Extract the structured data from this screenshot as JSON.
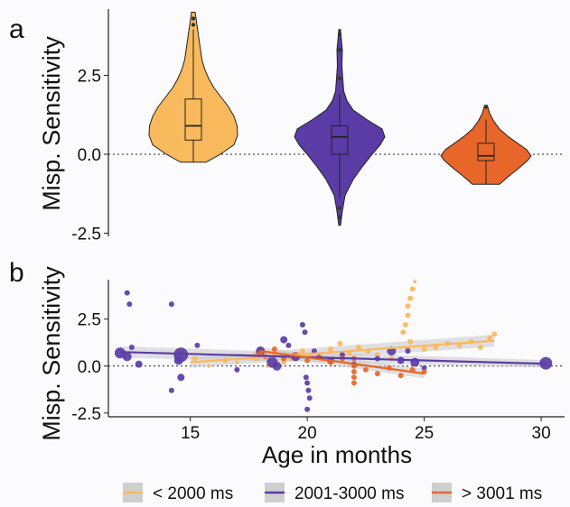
{
  "colors": {
    "short": "#f9b95d",
    "mid": "#5b3ca6",
    "long": "#e8662a",
    "ci": "#c9c9c9",
    "bg": "#fbfbfe"
  },
  "legend": [
    {
      "label": "< 2000 ms",
      "color": "#f9b95d"
    },
    {
      "label": "2001-3000 ms",
      "color": "#5b3ca6"
    },
    {
      "label": "> 3001 ms",
      "color": "#e8662a"
    }
  ],
  "chart_data": [
    {
      "type": "violin",
      "panel_label": "a",
      "ylabel": "Misp. Sensitivity",
      "ylim": [
        -2.6,
        4.6
      ],
      "yticks": [
        -2.5,
        0.0,
        2.5
      ],
      "ytick_labels": [
        "-2.5",
        "0.0",
        "2.5"
      ],
      "reference_line": 0,
      "groups": [
        {
          "name": "< 2000 ms",
          "color": "#f9b95d",
          "min": -0.25,
          "max": 4.5,
          "q1": 0.45,
          "median": 0.9,
          "q3": 1.75,
          "whisker_low": -0.25,
          "whisker_high": 3.95,
          "outliers": [
            4.1,
            4.3
          ],
          "density": [
            [
              -0.25,
              0.28
            ],
            [
              0.0,
              0.6
            ],
            [
              0.3,
              0.9
            ],
            [
              0.6,
              0.98
            ],
            [
              0.9,
              0.97
            ],
            [
              1.2,
              0.9
            ],
            [
              1.5,
              0.78
            ],
            [
              1.8,
              0.62
            ],
            [
              2.1,
              0.46
            ],
            [
              2.4,
              0.34
            ],
            [
              2.7,
              0.25
            ],
            [
              3.0,
              0.19
            ],
            [
              3.3,
              0.16
            ],
            [
              3.6,
              0.13
            ],
            [
              3.9,
              0.1
            ],
            [
              4.2,
              0.07
            ],
            [
              4.5,
              0.04
            ]
          ]
        },
        {
          "name": "2001-3000 ms",
          "color": "#5b3ca6",
          "min": -2.25,
          "max": 3.95,
          "q1": 0.0,
          "median": 0.55,
          "q3": 0.9,
          "whisker_low": -1.4,
          "whisker_high": 1.9,
          "outliers": [
            -2.0,
            -1.7,
            2.4,
            3.3,
            3.8
          ],
          "density": [
            [
              -2.25,
              0.02
            ],
            [
              -1.8,
              0.06
            ],
            [
              -1.3,
              0.12
            ],
            [
              -0.8,
              0.3
            ],
            [
              -0.4,
              0.5
            ],
            [
              0.0,
              0.72
            ],
            [
              0.3,
              0.9
            ],
            [
              0.55,
              1.0
            ],
            [
              0.8,
              0.94
            ],
            [
              1.1,
              0.6
            ],
            [
              1.4,
              0.3
            ],
            [
              1.7,
              0.16
            ],
            [
              2.0,
              0.09
            ],
            [
              2.4,
              0.07
            ],
            [
              2.8,
              0.05
            ],
            [
              3.3,
              0.06
            ],
            [
              3.6,
              0.04
            ],
            [
              3.95,
              0.02
            ]
          ]
        },
        {
          "name": "> 3001 ms",
          "color": "#e8662a",
          "min": -0.95,
          "max": 1.55,
          "q1": -0.2,
          "median": -0.05,
          "q3": 0.35,
          "whisker_low": -0.95,
          "whisker_high": 1.1,
          "outliers": [
            1.5
          ],
          "density": [
            [
              -0.95,
              0.3
            ],
            [
              -0.7,
              0.5
            ],
            [
              -0.45,
              0.72
            ],
            [
              -0.2,
              0.92
            ],
            [
              -0.05,
              1.0
            ],
            [
              0.15,
              0.9
            ],
            [
              0.35,
              0.7
            ],
            [
              0.55,
              0.5
            ],
            [
              0.8,
              0.3
            ],
            [
              1.05,
              0.17
            ],
            [
              1.3,
              0.08
            ],
            [
              1.55,
              0.03
            ]
          ]
        }
      ]
    },
    {
      "type": "scatter",
      "panel_label": "b",
      "xlabel": "Age in months",
      "ylabel": "Misp. Sensitivity",
      "xlim": [
        11.5,
        31
      ],
      "ylim": [
        -2.7,
        4.6
      ],
      "xticks": [
        15,
        20,
        25,
        30
      ],
      "xtick_labels": [
        "15",
        "20",
        "25",
        "30"
      ],
      "yticks": [
        -2.5,
        0.0,
        2.5
      ],
      "ytick_labels": [
        "-2.5",
        "0.0",
        "2.5"
      ],
      "reference_line": 0,
      "series": [
        {
          "name": "< 2000 ms",
          "color": "#f9b95d",
          "fit": {
            "x": [
              15,
              28
            ],
            "y": [
              0.2,
              1.35
            ],
            "ci_halfwidth": [
              0.28,
              0.32
            ]
          },
          "points": [
            [
              14.5,
              0.8,
              3
            ],
            [
              15.2,
              0.4,
              3
            ],
            [
              15.8,
              0.0,
              2
            ],
            [
              16.5,
              0.3,
              3
            ],
            [
              17.0,
              0.2,
              2
            ],
            [
              17.8,
              0.5,
              5
            ],
            [
              18.0,
              0.9,
              3
            ],
            [
              18.3,
              0.0,
              2
            ],
            [
              18.6,
              0.6,
              3
            ],
            [
              19.0,
              0.2,
              3
            ],
            [
              19.3,
              0.4,
              3
            ],
            [
              19.8,
              0.8,
              3
            ],
            [
              20.2,
              0.6,
              3
            ],
            [
              20.6,
              0.4,
              3
            ],
            [
              21.0,
              0.9,
              3
            ],
            [
              21.4,
              1.2,
              3
            ],
            [
              21.8,
              0.7,
              3
            ],
            [
              22.2,
              1.0,
              3
            ],
            [
              22.6,
              0.8,
              3
            ],
            [
              23.0,
              0.6,
              3
            ],
            [
              23.6,
              0.4,
              3
            ],
            [
              24.1,
              1.8,
              3
            ],
            [
              24.2,
              2.2,
              3
            ],
            [
              24.3,
              2.7,
              3
            ],
            [
              24.3,
              3.2,
              3
            ],
            [
              24.4,
              3.6,
              3
            ],
            [
              24.5,
              4.1,
              3
            ],
            [
              24.6,
              4.5,
              2
            ],
            [
              24.4,
              1.3,
              3
            ],
            [
              24.3,
              0.9,
              3
            ],
            [
              25.0,
              0.9,
              3
            ],
            [
              25.5,
              1.0,
              3
            ],
            [
              26.0,
              1.2,
              3
            ],
            [
              26.5,
              1.1,
              3
            ],
            [
              27.0,
              1.3,
              3
            ],
            [
              27.4,
              1.0,
              3
            ],
            [
              27.8,
              1.5,
              3
            ],
            [
              28.0,
              1.7,
              3
            ]
          ]
        },
        {
          "name": "2001-3000 ms",
          "color": "#5b3ca6",
          "fit": {
            "x": [
              12,
              30.2
            ],
            "y": [
              0.75,
              0.12
            ],
            "ci_halfwidth": [
              0.3,
              0.2
            ]
          },
          "points": [
            [
              12.3,
              3.9,
              3
            ],
            [
              12.4,
              3.3,
              3
            ],
            [
              12.0,
              0.7,
              6
            ],
            [
              12.3,
              0.5,
              5
            ],
            [
              12.5,
              1.0,
              3
            ],
            [
              12.8,
              0.1,
              4
            ],
            [
              14.2,
              3.3,
              3
            ],
            [
              14.6,
              0.6,
              8
            ],
            [
              14.5,
              0.3,
              5
            ],
            [
              14.2,
              -1.3,
              3
            ],
            [
              14.6,
              -0.6,
              4
            ],
            [
              15.3,
              1.1,
              3
            ],
            [
              17.0,
              -0.2,
              3
            ],
            [
              18.0,
              0.8,
              5
            ],
            [
              18.5,
              0.2,
              6
            ],
            [
              18.7,
              0.0,
              5
            ],
            [
              19.0,
              1.4,
              4
            ],
            [
              19.2,
              1.1,
              3
            ],
            [
              19.5,
              0.5,
              5
            ],
            [
              19.8,
              2.2,
              3
            ],
            [
              19.9,
              1.8,
              3
            ],
            [
              19.95,
              -0.6,
              3
            ],
            [
              20.0,
              -0.9,
              3
            ],
            [
              20.05,
              -1.3,
              3
            ],
            [
              20.1,
              -1.7,
              3
            ],
            [
              20.0,
              -2.3,
              3
            ],
            [
              20.3,
              0.8,
              3
            ],
            [
              21.0,
              0.3,
              4
            ],
            [
              21.5,
              0.6,
              3
            ],
            [
              22.0,
              0.1,
              3
            ],
            [
              23.0,
              0.4,
              3
            ],
            [
              23.6,
              0.8,
              5
            ],
            [
              24.0,
              0.3,
              4
            ],
            [
              24.3,
              0.8,
              3
            ],
            [
              24.6,
              0.2,
              5
            ],
            [
              25.0,
              -0.1,
              3
            ],
            [
              30.2,
              0.15,
              7
            ]
          ]
        },
        {
          "name": "> 3001 ms",
          "color": "#e8662a",
          "fit": {
            "x": [
              18,
              25
            ],
            "y": [
              0.8,
              -0.4
            ],
            "ci_halfwidth": [
              0.2,
              0.25
            ]
          },
          "points": [
            [
              18.0,
              0.7,
              3
            ],
            [
              18.2,
              0.5,
              3
            ],
            [
              18.6,
              0.9,
              3
            ],
            [
              19.0,
              0.4,
              3
            ],
            [
              19.5,
              0.6,
              3
            ],
            [
              20.0,
              0.3,
              3
            ],
            [
              20.5,
              0.5,
              3
            ],
            [
              21.0,
              0.2,
              3
            ],
            [
              21.5,
              0.4,
              3
            ],
            [
              22.0,
              0.0,
              3
            ],
            [
              22.0,
              -0.3,
              3
            ],
            [
              22.0,
              -0.6,
              3
            ],
            [
              22.0,
              -0.9,
              3
            ],
            [
              22.0,
              0.4,
              3
            ],
            [
              22.5,
              -0.2,
              3
            ],
            [
              23.0,
              -0.4,
              3
            ],
            [
              23.5,
              -0.1,
              3
            ],
            [
              24.0,
              -0.5,
              3
            ],
            [
              24.5,
              -0.2,
              3
            ],
            [
              25.0,
              -0.3,
              3
            ]
          ]
        }
      ]
    }
  ]
}
